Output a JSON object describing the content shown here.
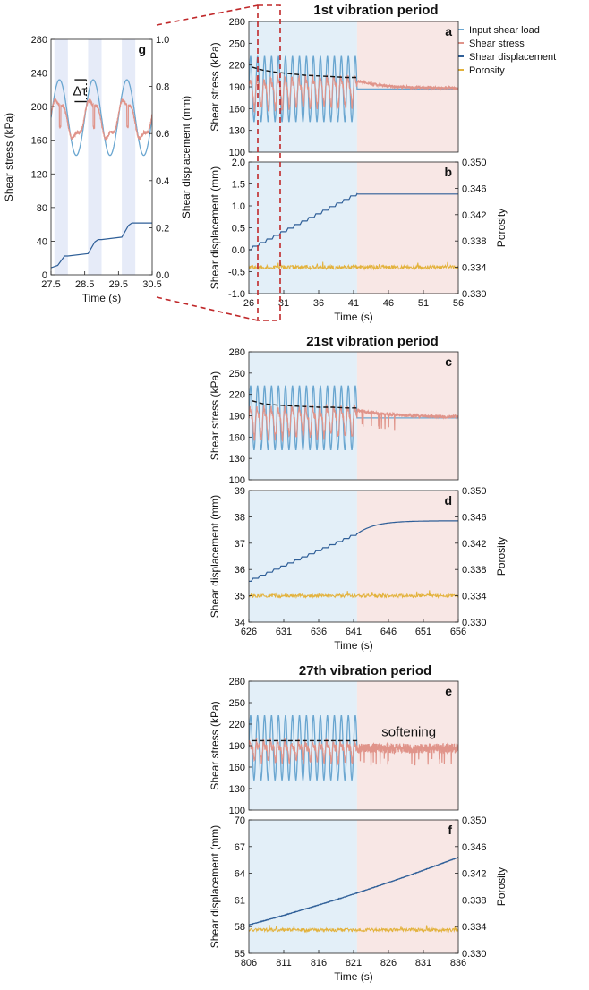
{
  "figure": {
    "titles": [
      "1st vibration period",
      "21st vibration period",
      "27th vibration period"
    ],
    "legend": [
      {
        "label": "Input shear load",
        "color": "#6aa6d0"
      },
      {
        "label": "Shear stress",
        "color": "#e0948a"
      },
      {
        "label": "Shear displacement",
        "color": "#2f5f98"
      },
      {
        "label": "Porosity",
        "color": "#e3b23c"
      }
    ],
    "colors": {
      "vibration_bg": "#e3eff8",
      "rest_bg": "#f8e7e5",
      "band_bg": "#e6ebf8",
      "zoom_box": "#c0282a",
      "fit": "#111111"
    }
  },
  "chart_data": [
    {
      "id": "a",
      "type": "line",
      "panel_label": "a",
      "title": "1st vibration period",
      "ylabel": "Shear stress (kPa)",
      "xlim": [
        26,
        56
      ],
      "ylim": [
        100,
        280
      ],
      "yticks": [
        100,
        130,
        160,
        190,
        220,
        250,
        280
      ],
      "vibration_end": 41.5,
      "series": [
        {
          "name": "Input shear load",
          "kind": "sine",
          "mean": 187,
          "amplitude": 45,
          "period": 1,
          "x_end": 41.5,
          "after": 187
        },
        {
          "name": "Shear stress",
          "kind": "noisy_sine",
          "mean_start": 183,
          "mean_end": 186,
          "amplitude": 18,
          "period": 1,
          "x_end": 41.5,
          "decay_from": 198,
          "decay_to": 188,
          "tau": 4
        },
        {
          "name": "Peak stress fit",
          "kind": "fit",
          "x": [
            26.5,
            28,
            30,
            32,
            34,
            36,
            38,
            40,
            41.5
          ],
          "y": [
            217,
            213,
            210,
            208,
            206,
            205,
            204,
            203,
            203
          ]
        }
      ]
    },
    {
      "id": "b",
      "type": "line",
      "panel_label": "b",
      "ylabel": "Shear displacement (mm)",
      "y2label": "Porosity",
      "xlabel": "Time (s)",
      "xlim": [
        26,
        56
      ],
      "xticks": [
        26,
        31,
        36,
        41,
        46,
        51,
        56
      ],
      "ylim": [
        -1.0,
        2.0
      ],
      "yticks": [
        -1.0,
        -0.5,
        0.0,
        0.5,
        1.0,
        1.5,
        2.0
      ],
      "y2lim": [
        0.33,
        0.35
      ],
      "y2ticks": [
        0.33,
        0.334,
        0.338,
        0.342,
        0.346,
        0.35
      ],
      "vibration_end": 41.5,
      "series": [
        {
          "name": "Shear displacement",
          "kind": "staircase",
          "start": 0.0,
          "end": 1.27,
          "x_end": 41.5
        },
        {
          "name": "Porosity",
          "kind": "noise",
          "axis": "right",
          "mean": 0.334,
          "noise": 0.0003
        }
      ]
    },
    {
      "id": "c",
      "type": "line",
      "panel_label": "c",
      "title": "21st vibration period",
      "ylabel": "Shear stress (kPa)",
      "xlim": [
        626,
        656
      ],
      "ylim": [
        100,
        280
      ],
      "yticks": [
        100,
        130,
        160,
        190,
        220,
        250,
        280
      ],
      "vibration_end": 641.5,
      "series": [
        {
          "name": "Input shear load",
          "kind": "sine",
          "mean": 187,
          "amplitude": 45,
          "period": 1,
          "x_end": 641.5,
          "after": 187
        },
        {
          "name": "Shear stress",
          "kind": "noisy_sine",
          "mean_start": 182,
          "mean_end": 185,
          "amplitude": 18,
          "period": 1,
          "x_end": 641.5,
          "decay_from": 198,
          "decay_to": 188,
          "tau": 5
        },
        {
          "name": "Peak stress fit",
          "kind": "fit",
          "x": [
            626.5,
            628,
            630,
            632,
            634,
            636,
            638,
            640,
            641.5
          ],
          "y": [
            211,
            207,
            205,
            204,
            203,
            202,
            202,
            201,
            201
          ]
        }
      ]
    },
    {
      "id": "d",
      "type": "line",
      "panel_label": "d",
      "ylabel": "Shear displacement (mm)",
      "y2label": "Porosity",
      "xlabel": "Time (s)",
      "xlim": [
        626,
        656
      ],
      "xticks": [
        626,
        631,
        636,
        641,
        646,
        651,
        656
      ],
      "ylim": [
        34,
        39
      ],
      "yticks": [
        34,
        35,
        36,
        37,
        38,
        39
      ],
      "y2lim": [
        0.33,
        0.35
      ],
      "y2ticks": [
        0.33,
        0.334,
        0.338,
        0.342,
        0.346,
        0.35
      ],
      "vibration_end": 641.5,
      "series": [
        {
          "name": "Shear displacement",
          "kind": "staircase",
          "start": 35.55,
          "end": 37.35,
          "x_end": 641.5,
          "plateau": 37.85,
          "tau": 2.5
        },
        {
          "name": "Porosity",
          "kind": "noise",
          "axis": "right",
          "mean": 0.334,
          "noise": 0.00025
        }
      ]
    },
    {
      "id": "e",
      "type": "line",
      "panel_label": "e",
      "title": "27th vibration period",
      "ylabel": "Shear stress (kPa)",
      "xlim": [
        806,
        836
      ],
      "ylim": [
        100,
        280
      ],
      "yticks": [
        100,
        130,
        160,
        190,
        220,
        250,
        280
      ],
      "vibration_end": 821.5,
      "annotation": "softening",
      "series": [
        {
          "name": "Input shear load",
          "kind": "sine",
          "mean": 187,
          "amplitude": 45,
          "period": 1,
          "x_end": 821.5,
          "after": null
        },
        {
          "name": "Shear stress",
          "kind": "noisy_sine",
          "mean_start": 184,
          "mean_end": 184,
          "amplitude": 10,
          "period": 1,
          "x_end": 821.5,
          "decay_from": 186,
          "decay_to": 186,
          "tau": 5
        },
        {
          "name": "Peak stress fit",
          "kind": "fit",
          "x": [
            806.5,
            821.5
          ],
          "y": [
            197,
            197
          ]
        }
      ]
    },
    {
      "id": "f",
      "type": "line",
      "panel_label": "f",
      "ylabel": "Shear displacement (mm)",
      "y2label": "Porosity",
      "xlabel": "Time (s)",
      "xlim": [
        806,
        836
      ],
      "xticks": [
        806,
        811,
        816,
        821,
        826,
        831,
        836
      ],
      "ylim": [
        55,
        70
      ],
      "yticks": [
        55,
        58,
        61,
        64,
        67,
        70
      ],
      "y2lim": [
        0.33,
        0.35
      ],
      "y2ticks": [
        0.33,
        0.334,
        0.338,
        0.342,
        0.346,
        0.35
      ],
      "vibration_end": 821.5,
      "series": [
        {
          "name": "Shear displacement",
          "kind": "accelerating",
          "start": 58.2,
          "mid": 61.8,
          "end": 65.8
        },
        {
          "name": "Porosity",
          "kind": "noise",
          "axis": "right",
          "mean": 0.3335,
          "noise": 0.00025
        }
      ]
    },
    {
      "id": "g",
      "type": "line",
      "panel_label": "g",
      "ylabel": "Shear stress (kPa)",
      "y2label": "Shear displacement (mm)",
      "xlabel": "Time (s)",
      "xlim": [
        27.5,
        30.5
      ],
      "xticks": [
        27.5,
        28.5,
        29.5,
        30.5
      ],
      "ylim": [
        0,
        280
      ],
      "yticks": [
        0,
        40,
        80,
        120,
        160,
        200,
        240,
        280
      ],
      "y2lim": [
        0.0,
        1.0
      ],
      "y2ticks": [
        0.0,
        0.2,
        0.4,
        0.6,
        0.8,
        1.0
      ],
      "bands": [
        [
          27.6,
          28.0
        ],
        [
          28.6,
          29.0
        ],
        [
          29.6,
          30.0
        ]
      ],
      "annotation": "Δτ",
      "series": [
        {
          "name": "Input shear load",
          "kind": "sine",
          "mean": 187,
          "amplitude": 45,
          "period": 1
        },
        {
          "name": "Shear stress",
          "kind": "smooth",
          "mean": 185,
          "amplitude": 22,
          "period": 1
        },
        {
          "name": "Shear displacement",
          "kind": "steps",
          "axis": "right",
          "x": [
            27.5,
            27.7,
            27.9,
            28.0,
            28.6,
            28.8,
            28.9,
            29.0,
            29.6,
            29.8,
            29.9,
            30.5
          ],
          "y": [
            0.03,
            0.04,
            0.08,
            0.08,
            0.09,
            0.14,
            0.15,
            0.15,
            0.16,
            0.21,
            0.22,
            0.22
          ]
        }
      ]
    }
  ]
}
